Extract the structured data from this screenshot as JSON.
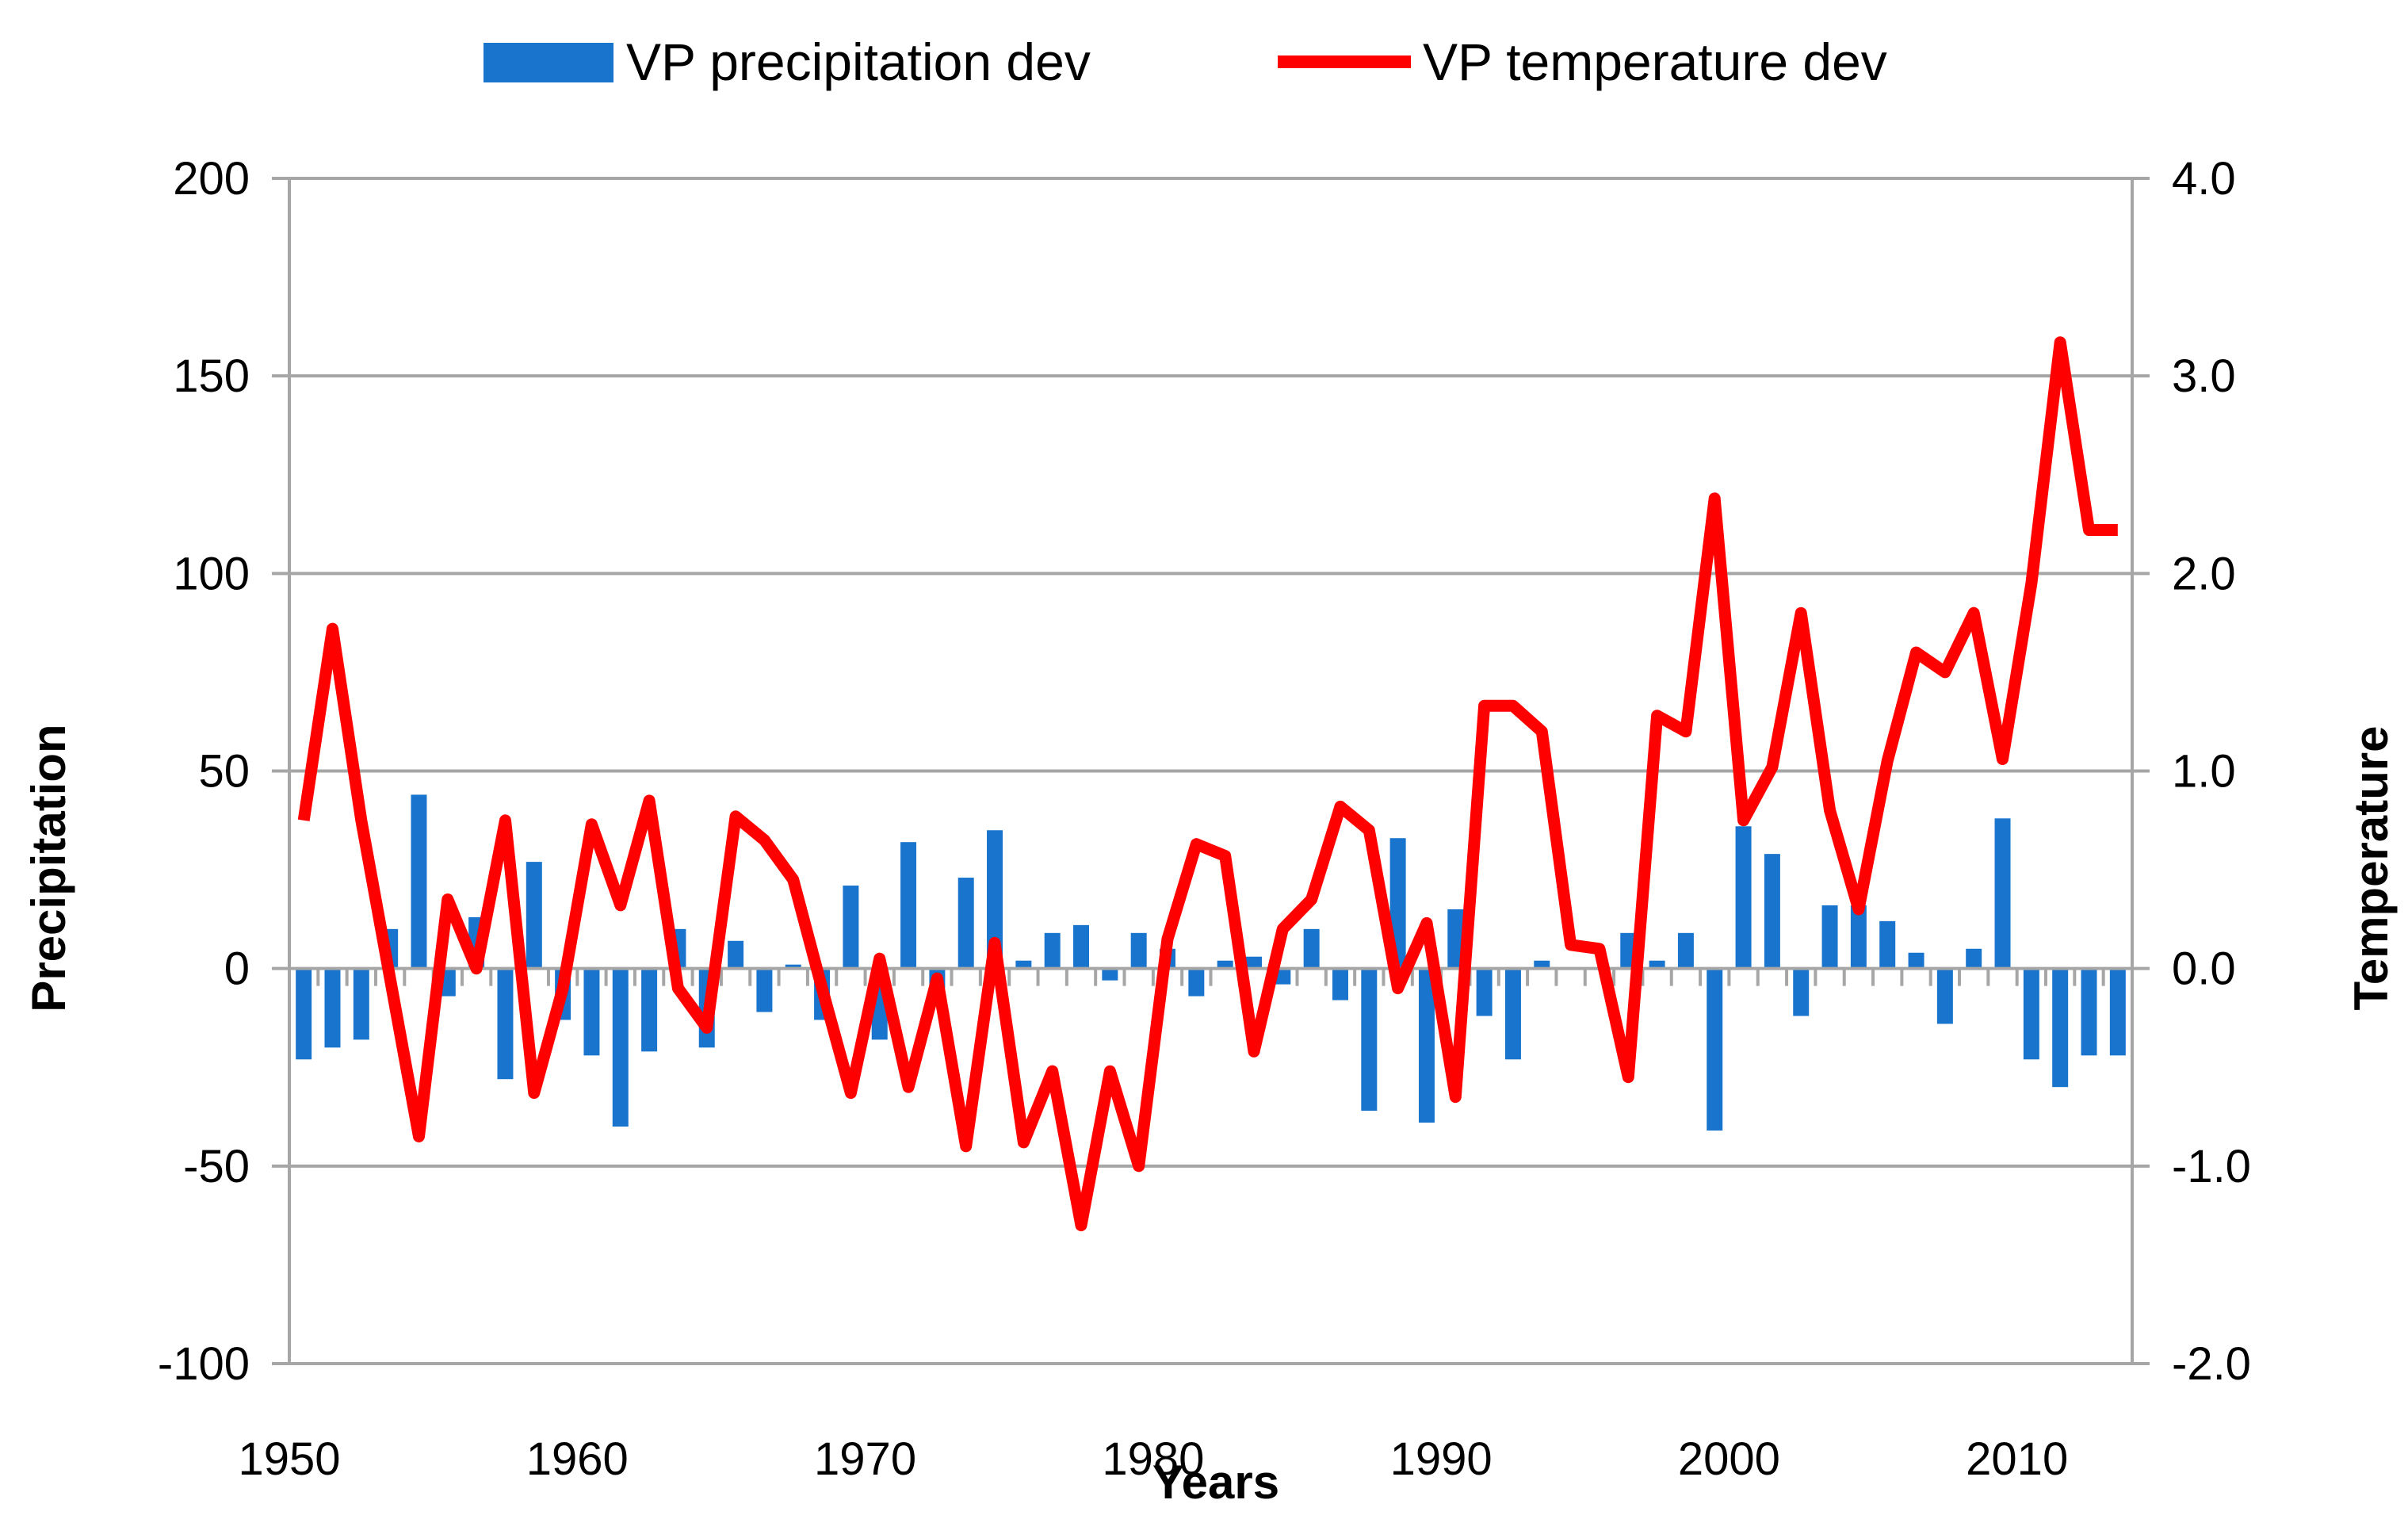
{
  "chart_data": {
    "type": "bar",
    "title": "",
    "xlabel": "Years",
    "ylabel": "Precipitation",
    "y2label": "Temperature",
    "ylim": [
      -100,
      200
    ],
    "y2lim": [
      -2.0,
      4.0
    ],
    "xlim": [
      1950,
      2014
    ],
    "grid": true,
    "legend_position": "top",
    "x_ticks": [
      "1950",
      "1960",
      "1970",
      "1980",
      "1990",
      "2000",
      "2010"
    ],
    "y_ticks": [
      "200",
      "150",
      "100",
      "50",
      "0",
      "-50",
      "-100"
    ],
    "y2_ticks": [
      "4.0",
      "3.0",
      "2.0",
      "1.0",
      "0.0",
      "-1.0",
      "-2.0"
    ],
    "colors": {
      "precipitation": "#1874cd",
      "temperature": "#ff0000",
      "grid": "#a6a6a6"
    },
    "series": [
      {
        "name": "VP precipitation dev",
        "type": "bar",
        "axis": "left",
        "x": [
          1950,
          1951,
          1952,
          1953,
          1954,
          1955,
          1956,
          1957,
          1958,
          1959,
          1960,
          1961,
          1962,
          1963,
          1964,
          1965,
          1966,
          1967,
          1968,
          1969,
          1970,
          1971,
          1972,
          1973,
          1974,
          1975,
          1976,
          1977,
          1978,
          1979,
          1980,
          1981,
          1982,
          1983,
          1984,
          1985,
          1986,
          1987,
          1988,
          1989,
          1990,
          1991,
          1992,
          1993,
          1994,
          1995,
          1996,
          1997,
          1998,
          1999,
          2000,
          2001,
          2002,
          2003,
          2004,
          2005,
          2006,
          2007,
          2008,
          2009,
          2010,
          2011,
          2012,
          2013
        ],
        "values": [
          -23,
          -20,
          -18,
          10,
          44,
          -7,
          13,
          -28,
          27,
          -13,
          -22,
          -40,
          -21,
          10,
          -20,
          7,
          -11,
          1,
          -13,
          21,
          -18,
          32,
          -5,
          23,
          35,
          2,
          9,
          11,
          -3,
          9,
          5,
          -7,
          2,
          3,
          -4,
          10,
          -8,
          -36,
          33,
          -39,
          15,
          -12,
          -23,
          2,
          0,
          0,
          9,
          2,
          9,
          -41,
          36,
          29,
          -12,
          16,
          16,
          12,
          4,
          -14,
          5,
          38,
          -23,
          -30,
          -22,
          -22
        ]
      },
      {
        "name": "VP temperature dev",
        "type": "line",
        "axis": "right",
        "x": [
          1950,
          1951,
          1952,
          1953,
          1954,
          1955,
          1956,
          1957,
          1958,
          1959,
          1960,
          1961,
          1962,
          1963,
          1964,
          1965,
          1966,
          1967,
          1968,
          1969,
          1970,
          1971,
          1972,
          1973,
          1974,
          1975,
          1976,
          1977,
          1978,
          1979,
          1980,
          1981,
          1982,
          1983,
          1984,
          1985,
          1986,
          1987,
          1988,
          1989,
          1990,
          1991,
          1992,
          1993,
          1994,
          1995,
          1996,
          1997,
          1998,
          1999,
          2000,
          2001,
          2002,
          2003,
          2004,
          2005,
          2006,
          2007,
          2008,
          2009,
          2010,
          2011,
          2012,
          2013
        ],
        "values": [
          0.75,
          1.72,
          0.75,
          -0.05,
          -0.85,
          0.35,
          0.0,
          0.75,
          -0.63,
          -0.1,
          0.73,
          0.32,
          0.85,
          -0.1,
          -0.3,
          0.77,
          0.65,
          0.45,
          -0.1,
          -0.63,
          0.05,
          -0.6,
          -0.05,
          -0.9,
          0.13,
          -0.88,
          -0.52,
          -1.3,
          -0.52,
          -1.0,
          0.15,
          0.63,
          0.57,
          -0.42,
          0.2,
          0.35,
          0.82,
          0.7,
          -0.1,
          0.23,
          -0.65,
          1.33,
          1.33,
          1.2,
          0.12,
          0.1,
          -0.55,
          1.28,
          1.2,
          2.38,
          0.75,
          1.02,
          1.8,
          0.8,
          0.3,
          1.05,
          1.6,
          1.5,
          1.8,
          1.06,
          1.95,
          3.17,
          2.22,
          2.22
        ]
      }
    ]
  }
}
